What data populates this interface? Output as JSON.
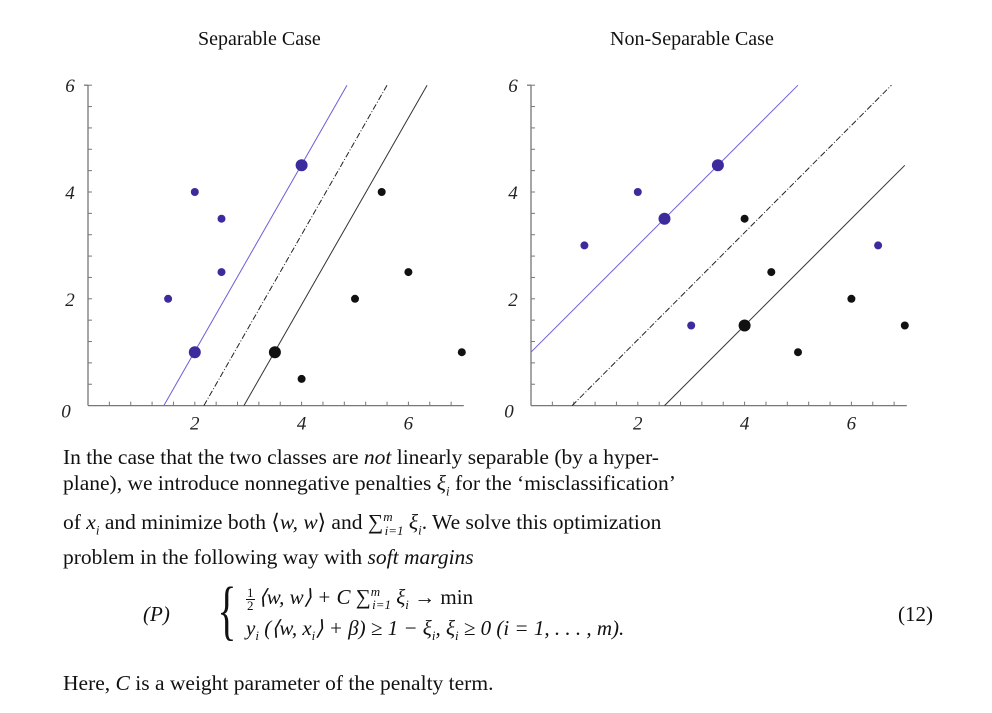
{
  "chart_data": [
    {
      "type": "scatter",
      "title": "Separable Case",
      "xlabel": "",
      "ylabel": "",
      "xlim": [
        0,
        7
      ],
      "ylim": [
        0,
        6
      ],
      "x_ticks": [
        "2",
        "4",
        "6"
      ],
      "y_ticks": [
        "2",
        "4",
        "6"
      ],
      "origin_label": "0",
      "grid": false,
      "series": [
        {
          "name": "class +1",
          "color": "#3b2b9c",
          "points": [
            [
              1.5,
              2
            ],
            [
              2,
              4
            ],
            [
              2.5,
              3.5
            ],
            [
              2.5,
              2.5
            ],
            [
              2,
              1
            ],
            [
              4,
              4.5
            ]
          ],
          "support_vectors": [
            [
              2,
              1
            ],
            [
              4,
              4.5
            ]
          ]
        },
        {
          "name": "class -1",
          "color": "#111111",
          "points": [
            [
              5.5,
              4
            ],
            [
              6,
              2.5
            ],
            [
              5,
              2
            ],
            [
              7,
              1
            ],
            [
              4,
              0.5
            ],
            [
              3.5,
              1
            ]
          ],
          "support_vectors": [
            [
              3.5,
              1
            ]
          ]
        }
      ],
      "lines": [
        {
          "name": "margin +1",
          "style": "solid",
          "color": "#6a5fd6",
          "from": [
            1.42,
            0
          ],
          "to": [
            4.85,
            6
          ]
        },
        {
          "name": "separating hyperplane",
          "style": "dashdot",
          "color": "#222222",
          "from": [
            2.17,
            0
          ],
          "to": [
            5.6,
            6
          ]
        },
        {
          "name": "margin -1",
          "style": "solid",
          "color": "#333333",
          "from": [
            2.92,
            0
          ],
          "to": [
            6.35,
            6
          ]
        }
      ]
    },
    {
      "type": "scatter",
      "title": "Non-Separable Case",
      "xlabel": "",
      "ylabel": "",
      "xlim": [
        0,
        7
      ],
      "ylim": [
        0,
        6
      ],
      "x_ticks": [
        "2",
        "4",
        "6"
      ],
      "y_ticks": [
        "2",
        "4",
        "6"
      ],
      "origin_label": "0",
      "grid": false,
      "series": [
        {
          "name": "class +1",
          "color": "#3b2b9c",
          "points": [
            [
              1,
              3
            ],
            [
              2,
              4
            ],
            [
              2.5,
              3.5
            ],
            [
              3.5,
              4.5
            ],
            [
              3,
              1.5
            ],
            [
              6.5,
              3
            ]
          ],
          "support_vectors": [
            [
              2.5,
              3.5
            ],
            [
              3.5,
              4.5
            ]
          ]
        },
        {
          "name": "class -1",
          "color": "#111111",
          "points": [
            [
              4,
              3.5
            ],
            [
              4.5,
              2.5
            ],
            [
              6,
              2
            ],
            [
              7,
              1.5
            ],
            [
              5,
              1
            ],
            [
              4,
              1.5
            ]
          ],
          "support_vectors": [
            [
              4,
              1.5
            ]
          ]
        }
      ],
      "lines": [
        {
          "name": "margin +1",
          "style": "solid",
          "color": "#6a5fd6",
          "from": [
            0,
            1
          ],
          "to": [
            5,
            6
          ]
        },
        {
          "name": "separating hyperplane",
          "style": "dashdot",
          "color": "#222222",
          "from": [
            0.77,
            0
          ],
          "to": [
            6.75,
            6
          ]
        },
        {
          "name": "margin -1",
          "style": "solid",
          "color": "#333333",
          "from": [
            2.5,
            0
          ],
          "to": [
            7,
            4.5
          ]
        }
      ]
    }
  ],
  "titles": {
    "left": "Separable Case",
    "right": "Non-Separable Case"
  },
  "ticks": {
    "zero": "0",
    "two": "2",
    "four": "4",
    "six": "6"
  },
  "paragraph": {
    "l1a": "In the case that the two classes are ",
    "l1b": "not",
    "l1c": " linearly separable (by a hyper-",
    "l2a": "plane), we introduce nonnegative penalties ",
    "l2b": "ξ",
    "l2c": "i",
    "l2d": " for the ‘misclassification’",
    "l3a": "of ",
    "l3b": "x",
    "l3c": "i",
    "l3d": " and minimize both ⟨",
    "l3e": "w, w",
    "l3f": "⟩ and ",
    "l3g": "∑",
    "l3h": "m",
    "l3i": "i=1",
    "l3j": " ξ",
    "l3k": "i",
    "l3l": ". We solve this optimization",
    "l4a": "problem in the following way with ",
    "l4b": "soft margins"
  },
  "equation": {
    "label": "(P)",
    "number": "(12)",
    "row1_half_num": "1",
    "row1_half_den": "2",
    "row1_a": "⟨w, w⟩ + C ",
    "row1_sum": "∑",
    "row1_sup": "m",
    "row1_sub": "i=1",
    "row1_b": " ξ",
    "row1_bsub": "i",
    "row1_c": " → min",
    "row2_a": "y",
    "row2_asub": "i",
    "row2_b": " (⟨w, x",
    "row2_bsub": "i",
    "row2_c": "⟩ + β) ≥ 1 − ξ",
    "row2_csub": "i",
    "row2_d": ", ξ",
    "row2_dsub": "i",
    "row2_e": " ≥ 0   (i = 1, . . . , m)."
  },
  "closing": {
    "a": "Here, ",
    "b": "C",
    "c": " is a weight parameter of the penalty term."
  }
}
